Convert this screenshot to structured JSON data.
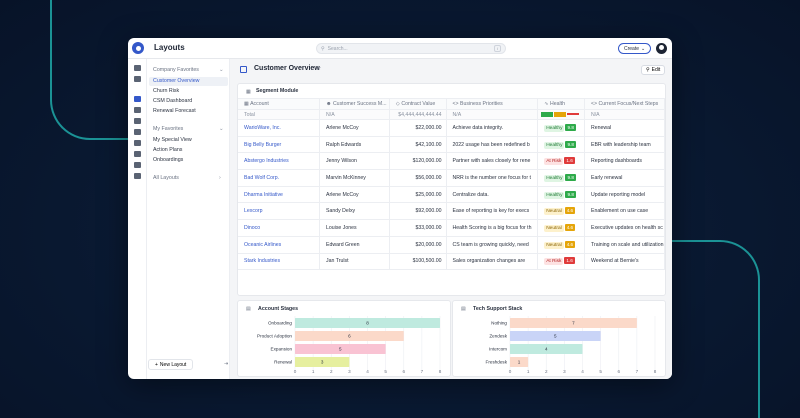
{
  "app": {
    "title": "Layouts",
    "search_placeholder": "Search...",
    "search_shortcut": "/",
    "create_label": "Create"
  },
  "sidebar": {
    "company_favorites_label": "Company Favorites",
    "company_items": [
      {
        "label": "Customer Overview",
        "active": true
      },
      {
        "label": "Churn Risk"
      },
      {
        "label": "CSM Dashboard"
      },
      {
        "label": "Renewal Forecast"
      }
    ],
    "my_favorites_label": "My Favorites",
    "my_items": [
      {
        "label": "My Special View"
      },
      {
        "label": "Action Plans"
      },
      {
        "label": "Onboardings"
      }
    ],
    "all_layouts_label": "All Layouts",
    "new_layout_label": "New Layout"
  },
  "page": {
    "title": "Customer Overview",
    "edit_label": "Edit"
  },
  "segment": {
    "title": "Segment Module",
    "columns": [
      "Account",
      "Customer Success M...",
      "Contract Value",
      "Business Priorities",
      "Health",
      "Current Focus/Next Steps"
    ],
    "total_row": {
      "label": "Total",
      "csm": "N/A",
      "value": "$4,444,444,444.44",
      "priorities": "N/A",
      "focus": "N/A"
    },
    "rows": [
      {
        "account": "WarioWare, Inc.",
        "csm": "Arlene McCoy",
        "value": "$22,000.00",
        "priorities": "Achieve data integrity.",
        "health": "Healthy",
        "score": "9.8",
        "focus": "Renewal"
      },
      {
        "account": "Big Belly Burger",
        "csm": "Ralph Edwards",
        "value": "$42,100.00",
        "priorities": "2022 usage has been redefined b",
        "health": "Healthy",
        "score": "9.8",
        "focus": "EBR with leadership team"
      },
      {
        "account": "Abstergo Industries",
        "csm": "Jenny Wilson",
        "value": "$120,000.00",
        "priorities": "Partner with sales closely for rene",
        "health": "At Risk",
        "score": "1.6",
        "focus": "Reporting dashboards"
      },
      {
        "account": "Bad Wolf Corp.",
        "csm": "Marvin McKinney",
        "value": "$56,000.00",
        "priorities": "NRR is the number one focus for t",
        "health": "Healthy",
        "score": "9.8",
        "focus": "Early renewal"
      },
      {
        "account": "Dharma Initiative",
        "csm": "Arlene McCoy",
        "value": "$25,000.00",
        "priorities": "Centralize data.",
        "health": "Healthy",
        "score": "9.8",
        "focus": "Update reporting model"
      },
      {
        "account": "Lexcorp",
        "csm": "Sandy Delxy",
        "value": "$92,000.00",
        "priorities": "Ease of reporting is key for execs",
        "health": "Neutral",
        "score": "4.6",
        "focus": "Enablement on use case"
      },
      {
        "account": "Dinoco",
        "csm": "Louise Jones",
        "value": "$33,000.00",
        "priorities": "Health Scoring is a big focus for th",
        "health": "Neutral",
        "score": "4.6",
        "focus": "Executive updates on health sc"
      },
      {
        "account": "Oceanic Airlines",
        "csm": "Edward Green",
        "value": "$20,000.00",
        "priorities": "CS team is growing quickly, need",
        "health": "Neutral",
        "score": "4.6",
        "focus": "Training on scale and utilization"
      },
      {
        "account": "Stark Industries",
        "csm": "Jan Trulst",
        "value": "$100,500.00",
        "priorities": "Sales organization changes are",
        "health": "At Risk",
        "score": "1.6",
        "focus": "Weekend at Bernie's"
      }
    ]
  },
  "colors": {
    "accent": "#3458c9",
    "healthy": "#2eaa4a",
    "neutral": "#e5a50a",
    "at_risk": "#e03b3b"
  },
  "chart_data": [
    {
      "type": "bar",
      "orientation": "horizontal",
      "title": "Account Stages",
      "categories": [
        "Onboarding",
        "Product Adoption",
        "Expansion",
        "Renewal"
      ],
      "values": [
        8,
        6,
        5,
        3
      ],
      "colors": [
        "#bfeadf",
        "#fbd9c9",
        "#f9c3d3",
        "#e6ef9f"
      ],
      "xlim": [
        0,
        8
      ],
      "xticks": [
        0,
        1,
        2,
        3,
        4,
        5,
        6,
        7,
        8
      ]
    },
    {
      "type": "bar",
      "orientation": "horizontal",
      "title": "Tech Support Stack",
      "categories": [
        "Nothing",
        "Zendesk",
        "Intercom",
        "Freshdesk"
      ],
      "values": [
        7,
        5,
        4,
        1
      ],
      "colors": [
        "#fbd9c9",
        "#c9d4f7",
        "#bfeadf",
        "#fbd9c9"
      ],
      "xlim": [
        0,
        8
      ],
      "xticks": [
        0,
        1,
        2,
        3,
        4,
        5,
        6,
        7,
        8
      ]
    }
  ]
}
